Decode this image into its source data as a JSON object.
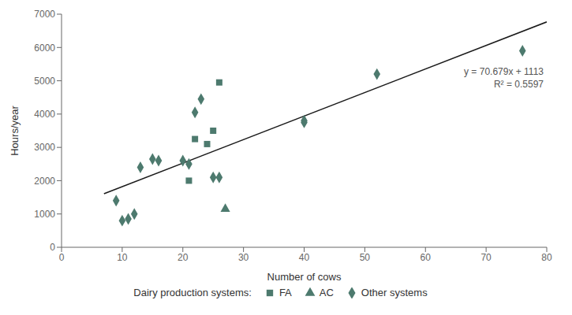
{
  "chart_data": {
    "type": "scatter",
    "xlabel": "Number of cows",
    "ylabel": "Hours/year",
    "xlim": [
      0,
      80
    ],
    "ylim": [
      0,
      7000
    ],
    "xticks": [
      0,
      10,
      20,
      30,
      40,
      50,
      60,
      70,
      80
    ],
    "yticks": [
      0,
      1000,
      2000,
      3000,
      4000,
      5000,
      6000,
      7000
    ],
    "grid": false,
    "legend": "bottom",
    "legend_title": "Dairy production systems:",
    "annotations": [
      "y = 70.679x + 1113",
      "R² = 0.5597"
    ],
    "series": [
      {
        "name": "FA",
        "type": "scatter",
        "marker": "square",
        "color": "#4d7a6e",
        "x": [
          22,
          24,
          26,
          25,
          21
        ],
        "values": [
          3250,
          3100,
          4950,
          3500,
          2000
        ]
      },
      {
        "name": "AC",
        "type": "scatter",
        "marker": "triangle",
        "color": "#4d7a6e",
        "x": [
          27
        ],
        "values": [
          1150
        ]
      },
      {
        "name": "Other systems",
        "type": "scatter",
        "marker": "diamond",
        "color": "#4d7a6e",
        "x": [
          9,
          10,
          11,
          12,
          13,
          15,
          16,
          20,
          21,
          22,
          23,
          25,
          26,
          40,
          40,
          52,
          76
        ],
        "values": [
          1400,
          800,
          850,
          1000,
          2400,
          2650,
          2600,
          2600,
          2500,
          4050,
          4450,
          2100,
          2100,
          3750,
          3800,
          5200,
          5900
        ]
      },
      {
        "type": "line",
        "color": "#1a1a1a",
        "x": [
          7,
          80
        ],
        "values": [
          1607.753,
          6767.32
        ]
      }
    ]
  }
}
